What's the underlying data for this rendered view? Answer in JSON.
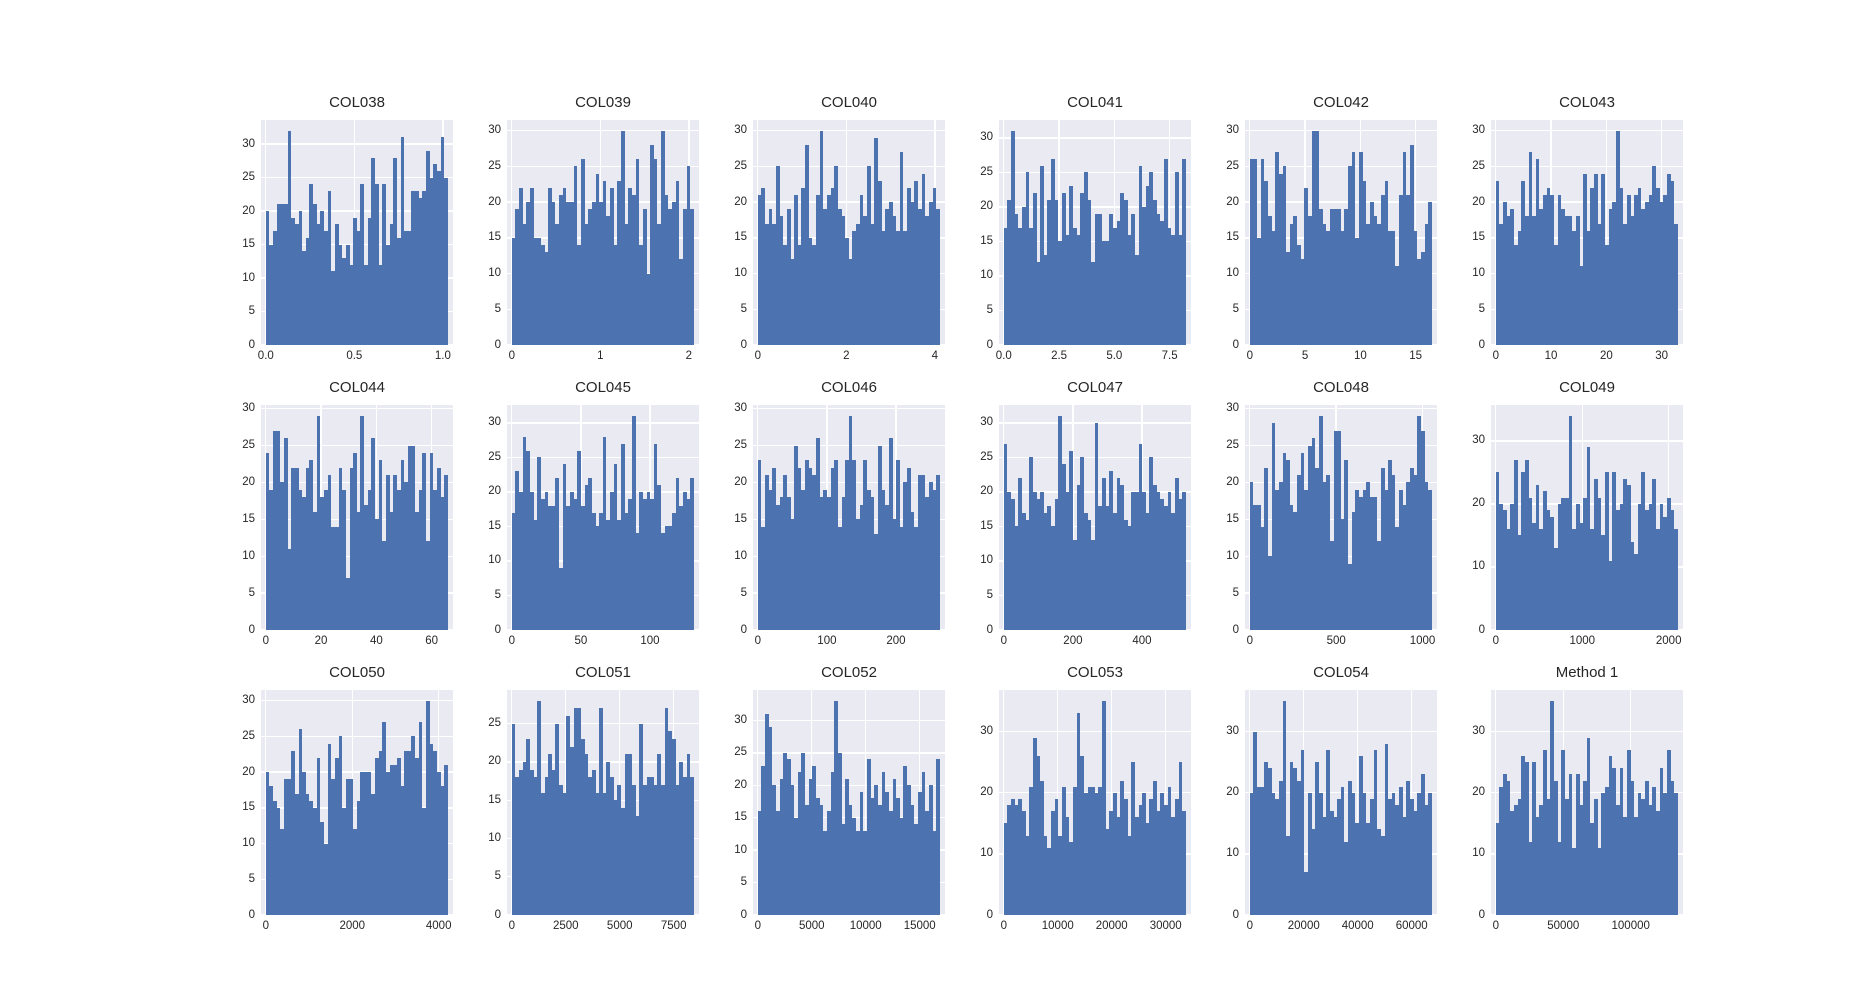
{
  "figure": {
    "background": "#ffffff",
    "axes_background": "#eaeaf2",
    "grid_color": "#ffffff",
    "bar_color": "#4c72b0",
    "tick_color": "#262626",
    "layout": "3 rows x 6 columns of histograms, seaborn darkgrid style, no legend, no axis labels"
  },
  "chart_data": [
    {
      "type": "bar",
      "title": "COL038",
      "x_tick_labels": [
        "0.0",
        "0.5",
        "1.0"
      ],
      "x_ticks": [
        0,
        0.5,
        1.0
      ],
      "x_range": [
        0,
        1.03
      ],
      "y_ticks": [
        0,
        5,
        10,
        15,
        20,
        25,
        30
      ],
      "y_max": 33.6,
      "values": [
        20,
        15,
        17,
        21,
        21,
        21,
        32,
        19,
        18,
        20,
        14,
        16,
        24,
        21,
        18,
        20,
        17,
        23,
        11,
        18,
        15,
        13,
        15,
        12,
        19,
        17,
        24,
        12,
        19,
        28,
        24,
        12,
        24,
        15,
        18,
        28,
        16,
        31,
        17,
        17,
        23,
        23,
        22,
        23,
        29,
        25,
        27,
        26,
        31,
        25
      ]
    },
    {
      "type": "bar",
      "title": "COL039",
      "x_tick_labels": [
        "0",
        "1",
        "2"
      ],
      "x_ticks": [
        0,
        1,
        2
      ],
      "x_range": [
        0,
        2.06
      ],
      "y_ticks": [
        0,
        5,
        10,
        15,
        20,
        25,
        30
      ],
      "y_max": 31.5,
      "values": [
        15,
        19,
        22,
        17,
        20,
        22,
        15,
        15,
        14,
        13,
        22,
        20,
        17,
        21,
        22,
        20,
        20,
        25,
        14,
        26,
        17,
        19,
        20,
        24,
        20,
        23,
        18,
        22,
        14,
        23,
        30,
        17,
        22,
        21,
        26,
        14,
        19,
        10,
        28,
        26,
        17,
        30,
        21,
        19,
        20,
        23,
        12,
        19,
        25,
        19
      ]
    },
    {
      "type": "bar",
      "title": "COL040",
      "x_tick_labels": [
        "0",
        "2",
        "4"
      ],
      "x_ticks": [
        0,
        2,
        4
      ],
      "x_range": [
        0,
        4.12
      ],
      "y_ticks": [
        0,
        5,
        10,
        15,
        20,
        25,
        30
      ],
      "y_max": 31.5,
      "values": [
        21,
        22,
        17,
        19,
        17,
        25,
        18,
        14,
        19,
        12,
        21,
        14,
        22,
        28,
        15,
        14,
        21,
        30,
        19,
        21,
        22,
        25,
        19,
        18,
        15,
        12,
        16,
        17,
        21,
        18,
        25,
        17,
        29,
        23,
        16,
        19,
        20,
        18,
        16,
        27,
        16,
        22,
        20,
        23,
        19,
        24,
        18,
        20,
        22,
        19
      ]
    },
    {
      "type": "bar",
      "title": "COL041",
      "x_tick_labels": [
        "0.0",
        "2.5",
        "5.0",
        "7.5"
      ],
      "x_ticks": [
        0,
        2.5,
        5.0,
        7.5
      ],
      "x_range": [
        0,
        8.25
      ],
      "y_ticks": [
        0,
        5,
        10,
        15,
        20,
        25,
        30
      ],
      "y_max": 32.6,
      "values": [
        17,
        21,
        31,
        19,
        17,
        20,
        25,
        17,
        22,
        12,
        26,
        13,
        21,
        27,
        21,
        15,
        22,
        16,
        23,
        17,
        16,
        22,
        25,
        21,
        12,
        19,
        19,
        15,
        15,
        19,
        17,
        18,
        22,
        21,
        16,
        19,
        13,
        26,
        20,
        23,
        25,
        21,
        19,
        18,
        27,
        17,
        16,
        25,
        16,
        27
      ]
    },
    {
      "type": "bar",
      "title": "COL042",
      "x_tick_labels": [
        "0",
        "5",
        "10",
        "15"
      ],
      "x_ticks": [
        0,
        5,
        10,
        15
      ],
      "x_range": [
        0,
        16.5
      ],
      "y_ticks": [
        0,
        5,
        10,
        15,
        20,
        25,
        30
      ],
      "y_max": 31.5,
      "values": [
        26,
        26,
        15,
        26,
        23,
        18,
        16,
        27,
        24,
        25,
        13,
        17,
        18,
        14,
        12,
        22,
        18,
        30,
        30,
        19,
        17,
        16,
        19,
        19,
        19,
        16,
        19,
        25,
        27,
        15,
        27,
        23,
        17,
        20,
        18,
        17,
        21,
        23,
        16,
        16,
        11,
        21,
        27,
        21,
        28,
        16,
        12,
        13,
        17,
        20
      ]
    },
    {
      "type": "bar",
      "title": "COL043",
      "x_tick_labels": [
        "0",
        "10",
        "20",
        "30"
      ],
      "x_ticks": [
        0,
        10,
        20,
        30
      ],
      "x_range": [
        0,
        33
      ],
      "y_ticks": [
        0,
        5,
        10,
        15,
        20,
        25,
        30
      ],
      "y_max": 31.5,
      "values": [
        23,
        17,
        20,
        18,
        19,
        14,
        16,
        23,
        18,
        27,
        18,
        26,
        19,
        21,
        22,
        21,
        14,
        21,
        19,
        18,
        18,
        16,
        18,
        11,
        24,
        16,
        22,
        24,
        17,
        24,
        14,
        19,
        20,
        30,
        22,
        17,
        21,
        18,
        21,
        22,
        19,
        20,
        21,
        25,
        22,
        20,
        21,
        24,
        23,
        17
      ]
    },
    {
      "type": "bar",
      "title": "COL044",
      "x_tick_labels": [
        "0",
        "20",
        "40",
        "60"
      ],
      "x_ticks": [
        0,
        20,
        40,
        60
      ],
      "x_range": [
        0,
        66
      ],
      "y_ticks": [
        0,
        5,
        10,
        15,
        20,
        25,
        30
      ],
      "y_max": 30.5,
      "values": [
        24,
        19,
        27,
        27,
        20,
        26,
        11,
        22,
        22,
        19,
        18,
        22,
        23,
        16,
        29,
        18,
        19,
        21,
        14,
        14,
        22,
        19,
        7,
        22,
        24,
        16,
        29,
        17,
        19,
        26,
        15,
        23,
        12,
        21,
        16,
        21,
        19,
        23,
        20,
        25,
        25,
        16,
        19,
        24,
        12,
        24,
        19,
        22,
        18,
        21
      ]
    },
    {
      "type": "bar",
      "title": "COL045",
      "x_tick_labels": [
        "0",
        "50",
        "100"
      ],
      "x_ticks": [
        0,
        50,
        100
      ],
      "x_range": [
        0,
        132
      ],
      "y_ticks": [
        0,
        5,
        10,
        15,
        20,
        25,
        30
      ],
      "y_max": 32.6,
      "values": [
        17,
        23,
        20,
        28,
        26,
        20,
        16,
        25,
        19,
        20,
        18,
        18,
        22,
        9,
        24,
        18,
        20,
        19,
        26,
        18,
        21,
        22,
        17,
        15,
        17,
        28,
        16,
        20,
        24,
        16,
        27,
        17,
        19,
        31,
        14,
        20,
        19,
        20,
        19,
        27,
        21,
        14,
        15,
        15,
        17,
        22,
        18,
        20,
        19,
        22
      ]
    },
    {
      "type": "bar",
      "title": "COL046",
      "x_tick_labels": [
        "0",
        "100",
        "200"
      ],
      "x_ticks": [
        0,
        100,
        200
      ],
      "x_range": [
        0,
        264
      ],
      "y_ticks": [
        0,
        5,
        10,
        15,
        20,
        25,
        30
      ],
      "y_max": 30.5,
      "values": [
        23,
        14,
        21,
        19,
        22,
        17,
        18,
        21,
        18,
        15,
        25,
        22,
        19,
        23,
        22,
        21,
        26,
        18,
        19,
        18,
        22,
        23,
        14,
        18,
        23,
        29,
        23,
        15,
        17,
        23,
        19,
        18,
        13,
        25,
        19,
        17,
        26,
        15,
        23,
        14,
        20,
        22,
        16,
        14,
        21,
        21,
        18,
        20,
        19,
        21
      ]
    },
    {
      "type": "bar",
      "title": "COL047",
      "x_tick_labels": [
        "0",
        "200",
        "400"
      ],
      "x_ticks": [
        0,
        200,
        400
      ],
      "x_range": [
        0,
        528
      ],
      "y_ticks": [
        0,
        5,
        10,
        15,
        20,
        25,
        30
      ],
      "y_max": 32.6,
      "values": [
        27,
        20,
        19,
        15,
        22,
        17,
        16,
        25,
        20,
        19,
        20,
        17,
        18,
        15,
        19,
        31,
        24,
        20,
        26,
        13,
        21,
        25,
        17,
        16,
        13,
        30,
        18,
        22,
        18,
        23,
        17,
        22,
        21,
        16,
        15,
        20,
        20,
        27,
        20,
        17,
        25,
        21,
        20,
        19,
        18,
        20,
        17,
        22,
        19,
        20
      ]
    },
    {
      "type": "bar",
      "title": "COL048",
      "x_tick_labels": [
        "0",
        "500",
        "1000"
      ],
      "x_ticks": [
        0,
        500,
        1000
      ],
      "x_range": [
        0,
        1056
      ],
      "y_ticks": [
        0,
        5,
        10,
        15,
        20,
        25,
        30
      ],
      "y_max": 30.5,
      "values": [
        20,
        17,
        17,
        14,
        22,
        10,
        28,
        19,
        20,
        24,
        23,
        17,
        16,
        21,
        24,
        19,
        25,
        26,
        22,
        29,
        20,
        21,
        12,
        27,
        27,
        15,
        23,
        9,
        16,
        19,
        18,
        19,
        20,
        18,
        18,
        12,
        22,
        19,
        23,
        21,
        14,
        19,
        17,
        20,
        22,
        21,
        29,
        27,
        20,
        19
      ]
    },
    {
      "type": "bar",
      "title": "COL049",
      "x_tick_labels": [
        "0",
        "1000",
        "2000"
      ],
      "x_ticks": [
        0,
        1000,
        2000
      ],
      "x_range": [
        0,
        2110
      ],
      "y_ticks": [
        0,
        10,
        20,
        30
      ],
      "y_max": 35.7,
      "values": [
        25,
        20,
        19,
        16,
        20,
        27,
        15,
        25,
        27,
        21,
        17,
        23,
        16,
        22,
        19,
        18,
        13,
        20,
        21,
        21,
        34,
        16,
        20,
        17,
        21,
        29,
        16,
        24,
        21,
        15,
        25,
        11,
        25,
        19,
        20,
        24,
        23,
        14,
        12,
        20,
        25,
        19,
        20,
        24,
        16,
        20,
        18,
        21,
        19,
        16
      ]
    },
    {
      "type": "bar",
      "title": "COL050",
      "x_tick_labels": [
        "0",
        "2000",
        "4000"
      ],
      "x_ticks": [
        0,
        2000,
        4000
      ],
      "x_range": [
        0,
        4220
      ],
      "y_ticks": [
        0,
        5,
        10,
        15,
        20,
        25,
        30
      ],
      "y_max": 31.5,
      "values": [
        20,
        18,
        16,
        15,
        12,
        19,
        19,
        23,
        17,
        26,
        20,
        17,
        16,
        15,
        22,
        13,
        10,
        24,
        19,
        22,
        25,
        15,
        19,
        19,
        12,
        16,
        20,
        20,
        20,
        17,
        22,
        23,
        27,
        20,
        21,
        21,
        22,
        18,
        23,
        23,
        25,
        22,
        27,
        15,
        30,
        24,
        23,
        20,
        18,
        21
      ]
    },
    {
      "type": "bar",
      "title": "COL051",
      "x_tick_labels": [
        "0",
        "2500",
        "5000",
        "7500"
      ],
      "x_ticks": [
        0,
        2500,
        5000,
        7500
      ],
      "x_range": [
        0,
        8450
      ],
      "y_ticks": [
        0,
        5,
        10,
        15,
        20,
        25
      ],
      "y_max": 29.4,
      "values": [
        25,
        18,
        19,
        20,
        23,
        19,
        18,
        28,
        16,
        18,
        21,
        19,
        25,
        17,
        16,
        26,
        22,
        27,
        27,
        23,
        21,
        18,
        19,
        16,
        27,
        16,
        20,
        18,
        15,
        17,
        14,
        21,
        21,
        17,
        13,
        25,
        17,
        18,
        18,
        17,
        21,
        17,
        27,
        24,
        23,
        17,
        20,
        18,
        21,
        18
      ]
    },
    {
      "type": "bar",
      "title": "COL052",
      "x_tick_labels": [
        "0",
        "5000",
        "10000",
        "15000"
      ],
      "x_ticks": [
        0,
        5000,
        10000,
        15000
      ],
      "x_range": [
        0,
        16900
      ],
      "y_ticks": [
        0,
        5,
        10,
        15,
        20,
        25,
        30
      ],
      "y_max": 34.7,
      "values": [
        16,
        23,
        31,
        29,
        20,
        16,
        21,
        25,
        24,
        20,
        15,
        22,
        25,
        17,
        21,
        23,
        18,
        17,
        13,
        16,
        22,
        33,
        25,
        14,
        21,
        17,
        15,
        13,
        19,
        13,
        24,
        18,
        20,
        17,
        22,
        19,
        16,
        21,
        18,
        15,
        23,
        20,
        17,
        14,
        19,
        22,
        16,
        20,
        13,
        24
      ]
    },
    {
      "type": "bar",
      "title": "COL053",
      "x_tick_labels": [
        "0",
        "10000",
        "20000",
        "30000"
      ],
      "x_ticks": [
        0,
        10000,
        20000,
        30000
      ],
      "x_range": [
        0,
        33800
      ],
      "y_ticks": [
        0,
        10,
        20,
        30
      ],
      "y_max": 36.8,
      "values": [
        15,
        18,
        19,
        18,
        19,
        17,
        13,
        21,
        29,
        26,
        22,
        13,
        11,
        17,
        19,
        13,
        21,
        16,
        12,
        21,
        33,
        26,
        20,
        21,
        21,
        20,
        21,
        35,
        14,
        17,
        20,
        16,
        22,
        19,
        13,
        25,
        16,
        18,
        20,
        15,
        19,
        22,
        17,
        20,
        18,
        21,
        16,
        19,
        25,
        17
      ]
    },
    {
      "type": "bar",
      "title": "COL054",
      "x_tick_labels": [
        "0",
        "20000",
        "40000",
        "60000"
      ],
      "x_ticks": [
        0,
        20000,
        40000,
        60000
      ],
      "x_range": [
        0,
        67600
      ],
      "y_ticks": [
        0,
        10,
        20,
        30
      ],
      "y_max": 36.8,
      "values": [
        20,
        30,
        21,
        21,
        25,
        24,
        20,
        19,
        22,
        35,
        13,
        25,
        24,
        22,
        27,
        7,
        20,
        14,
        25,
        20,
        16,
        27,
        17,
        16,
        19,
        21,
        12,
        22,
        20,
        15,
        26,
        20,
        15,
        19,
        27,
        14,
        13,
        28,
        19,
        20,
        18,
        21,
        16,
        22,
        19,
        17,
        20,
        23,
        18,
        20
      ]
    },
    {
      "type": "bar",
      "title": "Method 1",
      "x_tick_labels": [
        "0",
        "50000",
        "100000"
      ],
      "x_ticks": [
        0,
        50000,
        100000
      ],
      "x_range": [
        0,
        135200
      ],
      "y_ticks": [
        0,
        10,
        20,
        30
      ],
      "y_max": 36.8,
      "values": [
        15,
        21,
        23,
        22,
        17,
        18,
        19,
        26,
        25,
        12,
        25,
        16,
        18,
        27,
        19,
        35,
        22,
        12,
        27,
        19,
        23,
        11,
        23,
        18,
        22,
        29,
        15,
        19,
        11,
        20,
        21,
        26,
        24,
        18,
        24,
        16,
        27,
        22,
        16,
        20,
        19,
        22,
        18,
        21,
        17,
        24,
        20,
        27,
        22,
        20
      ]
    }
  ]
}
